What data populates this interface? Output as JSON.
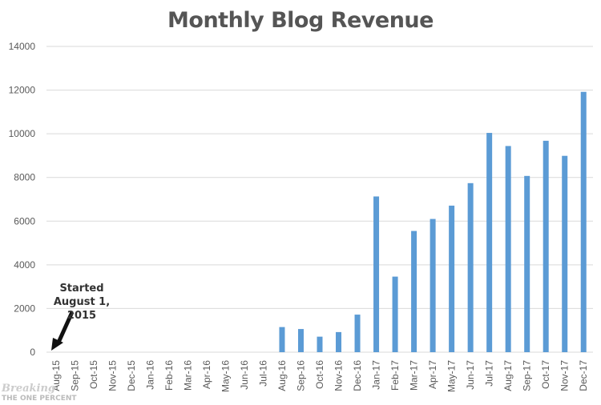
{
  "chart_data": {
    "type": "bar",
    "title": "Monthly Blog Revenue",
    "xlabel": "",
    "ylabel": "",
    "ylim": [
      0,
      14000
    ],
    "yticks": [
      0,
      2000,
      4000,
      6000,
      8000,
      10000,
      12000,
      14000
    ],
    "grid": true,
    "bar_color": "#5b9bd5",
    "categories": [
      "Aug-15",
      "Sep-15",
      "Oct-15",
      "Nov-15",
      "Dec-15",
      "Jan-16",
      "Feb-16",
      "Mar-16",
      "Apr-16",
      "May-16",
      "Jun-16",
      "Jul-16",
      "Aug-16",
      "Sep-16",
      "Oct-16",
      "Nov-16",
      "Dec-16",
      "Jan-17",
      "Feb-17",
      "Mar-17",
      "Apr-17",
      "May-17",
      "Jun-17",
      "Jul-17",
      "Aug-17",
      "Sep-17",
      "Oct-17",
      "Nov-17",
      "Dec-17"
    ],
    "values": [
      0,
      0,
      0,
      0,
      0,
      0,
      0,
      0,
      0,
      0,
      0,
      0,
      1150,
      1060,
      710,
      920,
      1720,
      7130,
      3460,
      5550,
      6100,
      6710,
      7740,
      10040,
      9440,
      8070,
      9680,
      8990,
      11920
    ],
    "annotation": {
      "line1": "Started",
      "line2": "August 1, 2015"
    }
  },
  "watermark": {
    "line1": "Breaking",
    "line2": "The One Percent"
  }
}
